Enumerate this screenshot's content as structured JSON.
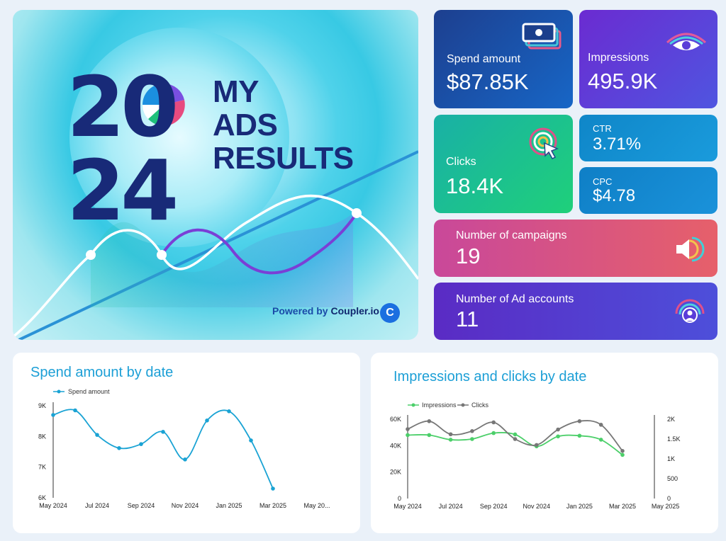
{
  "hero": {
    "year_top": "20",
    "year_bottom": "24",
    "title_line1": "MY",
    "title_line2": "ADS",
    "title_line3": "RESULTS",
    "powered_prefix": "Powered by",
    "powered_brand": "Coupler.io",
    "logo_glyph": "C"
  },
  "kpis": {
    "spend": {
      "label": "Spend amount",
      "value": "$87.85K",
      "icon": "money-stack-icon"
    },
    "impressions": {
      "label": "Impressions",
      "value": "495.9K",
      "icon": "eye-icon"
    },
    "clicks": {
      "label": "Clicks",
      "value": "18.4K",
      "icon": "cursor-click-icon"
    },
    "ctr": {
      "label": "CTR",
      "value": "3.71%"
    },
    "cpc": {
      "label": "CPC",
      "value": "$4.78"
    },
    "campaigns": {
      "label": "Number of campaigns",
      "value": "19",
      "icon": "megaphone-icon"
    },
    "accounts": {
      "label": "Number of Ad accounts",
      "value": "11",
      "icon": "user-broadcast-icon"
    }
  },
  "colors": {
    "spend_line": "#1aa3d4",
    "impressions_line": "#4ccf6a",
    "clicks_line": "#777777",
    "title_blue": "#1c9fd6"
  },
  "chart_data": [
    {
      "type": "line",
      "title": "Spend amount by date",
      "series": [
        {
          "name": "Spend amount",
          "values": [
            8700,
            8850,
            8050,
            7620,
            7750,
            8150,
            7250,
            8520,
            8820,
            7870,
            6300
          ]
        }
      ],
      "x": [
        "2024-05",
        "2024-06",
        "2024-07",
        "2024-08",
        "2024-09",
        "2024-10",
        "2024-11",
        "2024-12",
        "2025-01",
        "2025-02",
        "2025-03"
      ],
      "x_ticks": [
        "May 2024",
        "Jul 2024",
        "Sep 2024",
        "Nov 2024",
        "Jan 2025",
        "Mar 2025",
        "May 20..."
      ],
      "y_ticks": [
        "9K",
        "8K",
        "7K",
        "6K"
      ],
      "ylim": [
        6000,
        9000
      ],
      "legend": "top-left",
      "grid": false
    },
    {
      "type": "line",
      "title": "Impressions and clicks by date",
      "series": [
        {
          "name": "Impressions",
          "axis": "left",
          "values": [
            48000,
            48000,
            44500,
            45000,
            49500,
            48500,
            39500,
            47000,
            47500,
            44500,
            33000
          ]
        },
        {
          "name": "Clicks",
          "axis": "right",
          "values": [
            1750,
            1950,
            1620,
            1700,
            1920,
            1500,
            1350,
            1740,
            1950,
            1860,
            1200
          ]
        }
      ],
      "x": [
        "2024-05",
        "2024-06",
        "2024-07",
        "2024-08",
        "2024-09",
        "2024-10",
        "2024-11",
        "2024-12",
        "2025-01",
        "2025-02",
        "2025-03"
      ],
      "x_ticks": [
        "May 2024",
        "Jul 2024",
        "Sep 2024",
        "Nov 2024",
        "Jan 2025",
        "Mar 2025",
        "May 2025"
      ],
      "y_left_ticks": [
        "60K",
        "40K",
        "20K",
        "0"
      ],
      "y_right_ticks": [
        "2K",
        "1.5K",
        "1K",
        "500",
        "0"
      ],
      "ylim_left": [
        0,
        60000
      ],
      "ylim_right": [
        0,
        2000
      ],
      "legend": "top-left",
      "grid": false
    }
  ]
}
